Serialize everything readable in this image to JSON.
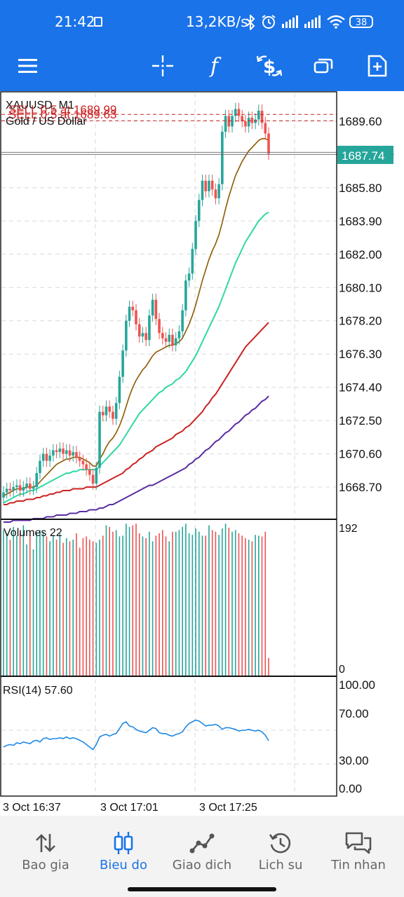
{
  "status_bar": {
    "time": "21:42",
    "network_speed": "13,2KB/s",
    "battery": "38"
  },
  "toolbar": {
    "icons": [
      "menu-icon",
      "crosshair-icon",
      "indicator-f-icon",
      "trade-dollar-icon",
      "windows-icon",
      "new-order-icon"
    ]
  },
  "chart": {
    "symbol": "XAUUSD, M1",
    "description": "Gold / US Dollar",
    "current_price": "1687.74",
    "sell_line_1": "SELL 0.5 at 1689.99",
    "sell_line_2": "SELL 0.5 at 1689.63",
    "price_labels": [
      "1689.60",
      "1685.80",
      "1683.90",
      "1682.00",
      "1680.10",
      "1678.20",
      "1676.30",
      "1674.40",
      "1672.50",
      "1670.60",
      "1668.70"
    ],
    "volume_label": "Volumes 22",
    "volume_max": "192",
    "volume_min": "0",
    "rsi_label": "RSI(14) 57.60",
    "rsi_levels": [
      "100.00",
      "70.00",
      "30.00",
      "0.00"
    ],
    "time_labels": [
      "3 Oct 16:37",
      "3 Oct 17:01",
      "3 Oct 17:25"
    ],
    "colors": {
      "bull": "#26a69a",
      "bear": "#ef5350",
      "ma_fast": "#8b5a00",
      "ma_mid": "#2ed8a3",
      "ma_slow": "#cc2222",
      "ma_slowest": "#5a2ca0",
      "rsi": "#1e88e5",
      "sell_line": "#cc2222",
      "accent": "#1a73e8"
    }
  },
  "chart_data": {
    "type": "candlestick",
    "close": [
      1668.4,
      1668.6,
      1668.5,
      1668.7,
      1668.8,
      1668.5,
      1668.7,
      1668.9,
      1668.6,
      1668.7,
      1669.5,
      1670.2,
      1670.6,
      1670.2,
      1670.5,
      1670.8,
      1670.7,
      1670.9,
      1670.6,
      1670.8,
      1670.5,
      1670.7,
      1670.4,
      1670.2,
      1670.0,
      1669.7,
      1669.4,
      1668.9,
      1669.8,
      1673.0,
      1672.8,
      1673.3,
      1673.0,
      1672.6,
      1673.5,
      1675.0,
      1676.5,
      1678.2,
      1679.0,
      1678.8,
      1678.0,
      1677.3,
      1677.5,
      1677.1,
      1678.5,
      1679.4,
      1678.3,
      1677.5,
      1677.2,
      1677.0,
      1677.4,
      1676.8,
      1677.2,
      1677.6,
      1678.8,
      1680.5,
      1680.9,
      1682.3,
      1683.9,
      1685.1,
      1686.2,
      1685.6,
      1686.2,
      1685.7,
      1685.2,
      1686.0,
      1689.0,
      1689.9,
      1689.3,
      1689.9,
      1690.3,
      1689.9,
      1689.6,
      1689.3,
      1689.8,
      1689.5,
      1689.7,
      1690.2,
      1689.5,
      1688.9,
      1687.74
    ],
    "volumes": [
      182,
      178,
      170,
      186,
      175,
      178,
      188,
      164,
      176,
      158,
      178,
      182,
      180,
      174,
      168,
      176,
      170,
      178,
      166,
      172,
      168,
      170,
      178,
      160,
      172,
      174,
      170,
      168,
      166,
      170,
      175,
      188,
      186,
      180,
      182,
      174,
      175,
      190,
      186,
      188,
      190,
      178,
      174,
      172,
      180,
      168,
      175,
      178,
      182,
      174,
      168,
      180,
      180,
      182,
      186,
      190,
      178,
      176,
      184,
      180,
      175,
      175,
      188,
      182,
      180,
      176,
      184,
      190,
      185,
      180,
      182,
      178,
      175,
      172,
      170,
      168,
      176,
      175,
      174,
      180,
      22
    ],
    "ma_fast": [
      1668.2,
      1668.3,
      1668.4,
      1668.5,
      1668.6,
      1668.6,
      1668.6,
      1668.7,
      1668.7,
      1668.7,
      1668.8,
      1669.0,
      1669.2,
      1669.4,
      1669.6,
      1669.8,
      1670.0,
      1670.1,
      1670.2,
      1670.3,
      1670.3,
      1670.4,
      1670.4,
      1670.4,
      1670.3,
      1670.2,
      1670.1,
      1669.9,
      1669.9,
      1670.3,
      1670.6,
      1671.0,
      1671.3,
      1671.5,
      1671.8,
      1672.2,
      1672.7,
      1673.3,
      1673.9,
      1674.4,
      1674.8,
      1675.1,
      1675.4,
      1675.6,
      1675.9,
      1676.2,
      1676.4,
      1676.5,
      1676.6,
      1676.7,
      1676.8,
      1676.8,
      1676.9,
      1677.0,
      1677.2,
      1677.6,
      1678.0,
      1678.5,
      1679.1,
      1679.8,
      1680.5,
      1681.1,
      1681.7,
      1682.2,
      1682.6,
      1683.1,
      1683.8,
      1684.6,
      1685.3,
      1685.9,
      1686.5,
      1686.9,
      1687.3,
      1687.6,
      1687.9,
      1688.1,
      1688.3,
      1688.5,
      1688.6,
      1688.6,
      1688.5
    ],
    "ma_mid": [
      1667.8,
      1667.9,
      1668.0,
      1668.1,
      1668.2,
      1668.3,
      1668.3,
      1668.4,
      1668.5,
      1668.5,
      1668.6,
      1668.7,
      1668.8,
      1668.9,
      1669.0,
      1669.1,
      1669.2,
      1669.3,
      1669.4,
      1669.5,
      1669.5,
      1669.6,
      1669.6,
      1669.7,
      1669.7,
      1669.7,
      1669.7,
      1669.7,
      1669.7,
      1669.9,
      1670.1,
      1670.3,
      1670.5,
      1670.7,
      1670.9,
      1671.1,
      1671.4,
      1671.7,
      1672.0,
      1672.3,
      1672.6,
      1672.9,
      1673.1,
      1673.3,
      1673.5,
      1673.7,
      1673.9,
      1674.1,
      1674.2,
      1674.4,
      1674.5,
      1674.6,
      1674.8,
      1674.9,
      1675.1,
      1675.3,
      1675.6,
      1675.9,
      1676.2,
      1676.6,
      1677.0,
      1677.4,
      1677.8,
      1678.2,
      1678.6,
      1679.0,
      1679.5,
      1680.0,
      1680.5,
      1681.0,
      1681.5,
      1681.9,
      1682.3,
      1682.7,
      1683.0,
      1683.3,
      1683.6,
      1683.9,
      1684.1,
      1684.3,
      1684.4
    ],
    "ma_slow": [
      1667.7,
      1667.7,
      1667.8,
      1667.8,
      1667.9,
      1667.9,
      1667.9,
      1668.0,
      1668.0,
      1668.0,
      1668.1,
      1668.1,
      1668.2,
      1668.2,
      1668.3,
      1668.3,
      1668.4,
      1668.4,
      1668.5,
      1668.5,
      1668.5,
      1668.6,
      1668.6,
      1668.6,
      1668.6,
      1668.7,
      1668.7,
      1668.7,
      1668.7,
      1668.8,
      1668.9,
      1669.0,
      1669.1,
      1669.2,
      1669.3,
      1669.4,
      1669.5,
      1669.7,
      1669.8,
      1670.0,
      1670.1,
      1670.3,
      1670.4,
      1670.6,
      1670.7,
      1670.8,
      1671.0,
      1671.1,
      1671.2,
      1671.3,
      1671.4,
      1671.5,
      1671.7,
      1671.8,
      1671.9,
      1672.1,
      1672.2,
      1672.4,
      1672.6,
      1672.8,
      1673.0,
      1673.3,
      1673.5,
      1673.8,
      1674.0,
      1674.3,
      1674.6,
      1674.9,
      1675.2,
      1675.5,
      1675.8,
      1676.1,
      1676.4,
      1676.7,
      1676.9,
      1677.1,
      1677.3,
      1677.5,
      1677.7,
      1677.9,
      1678.1
    ],
    "ma_slowest": [
      1666.7,
      1666.7,
      1666.7,
      1666.8,
      1666.8,
      1666.8,
      1666.8,
      1666.8,
      1666.8,
      1666.9,
      1666.9,
      1666.9,
      1666.9,
      1667.0,
      1667.0,
      1667.0,
      1667.1,
      1667.1,
      1667.1,
      1667.1,
      1667.2,
      1667.2,
      1667.2,
      1667.3,
      1667.3,
      1667.3,
      1667.4,
      1667.4,
      1667.4,
      1667.5,
      1667.5,
      1667.6,
      1667.7,
      1667.7,
      1667.8,
      1667.9,
      1668.0,
      1668.1,
      1668.2,
      1668.3,
      1668.4,
      1668.5,
      1668.6,
      1668.7,
      1668.8,
      1668.8,
      1668.9,
      1669.0,
      1669.1,
      1669.2,
      1669.3,
      1669.4,
      1669.5,
      1669.6,
      1669.7,
      1669.8,
      1670.0,
      1670.1,
      1670.3,
      1670.4,
      1670.6,
      1670.8,
      1670.9,
      1671.1,
      1671.3,
      1671.4,
      1671.6,
      1671.8,
      1671.9,
      1672.1,
      1672.3,
      1672.4,
      1672.6,
      1672.8,
      1672.9,
      1673.1,
      1673.2,
      1673.4,
      1673.6,
      1673.7,
      1673.9
    ],
    "rsi": [
      50,
      52,
      53,
      52,
      55,
      54,
      56,
      55,
      54,
      57,
      58,
      56,
      60,
      61,
      59,
      60,
      60,
      61,
      60,
      62,
      60,
      61,
      60,
      58,
      56,
      53,
      50,
      47,
      53,
      62,
      64,
      65,
      63,
      65,
      66,
      72,
      78,
      80,
      75,
      74,
      71,
      69,
      68,
      67,
      70,
      73,
      72,
      67,
      66,
      66,
      64,
      63,
      65,
      66,
      68,
      74,
      78,
      80,
      82,
      81,
      78,
      75,
      76,
      76,
      77,
      75,
      71,
      73,
      73,
      72,
      71,
      69,
      70,
      70,
      71,
      70,
      69,
      70,
      68,
      64,
      57.6
    ],
    "price_range": [
      1666.9,
      1691.2
    ],
    "volume_range": [
      0,
      192
    ],
    "rsi_range": [
      0,
      100
    ],
    "sell_levels": [
      1689.99,
      1689.63
    ],
    "bid": 1687.74
  },
  "nav": {
    "items": [
      {
        "label": "Bao gia",
        "name": "nav-quotes"
      },
      {
        "label": "Bieu do",
        "name": "nav-chart"
      },
      {
        "label": "Giao dich",
        "name": "nav-trade"
      },
      {
        "label": "Lich su",
        "name": "nav-history"
      },
      {
        "label": "Tin nhan",
        "name": "nav-messages"
      }
    ]
  }
}
